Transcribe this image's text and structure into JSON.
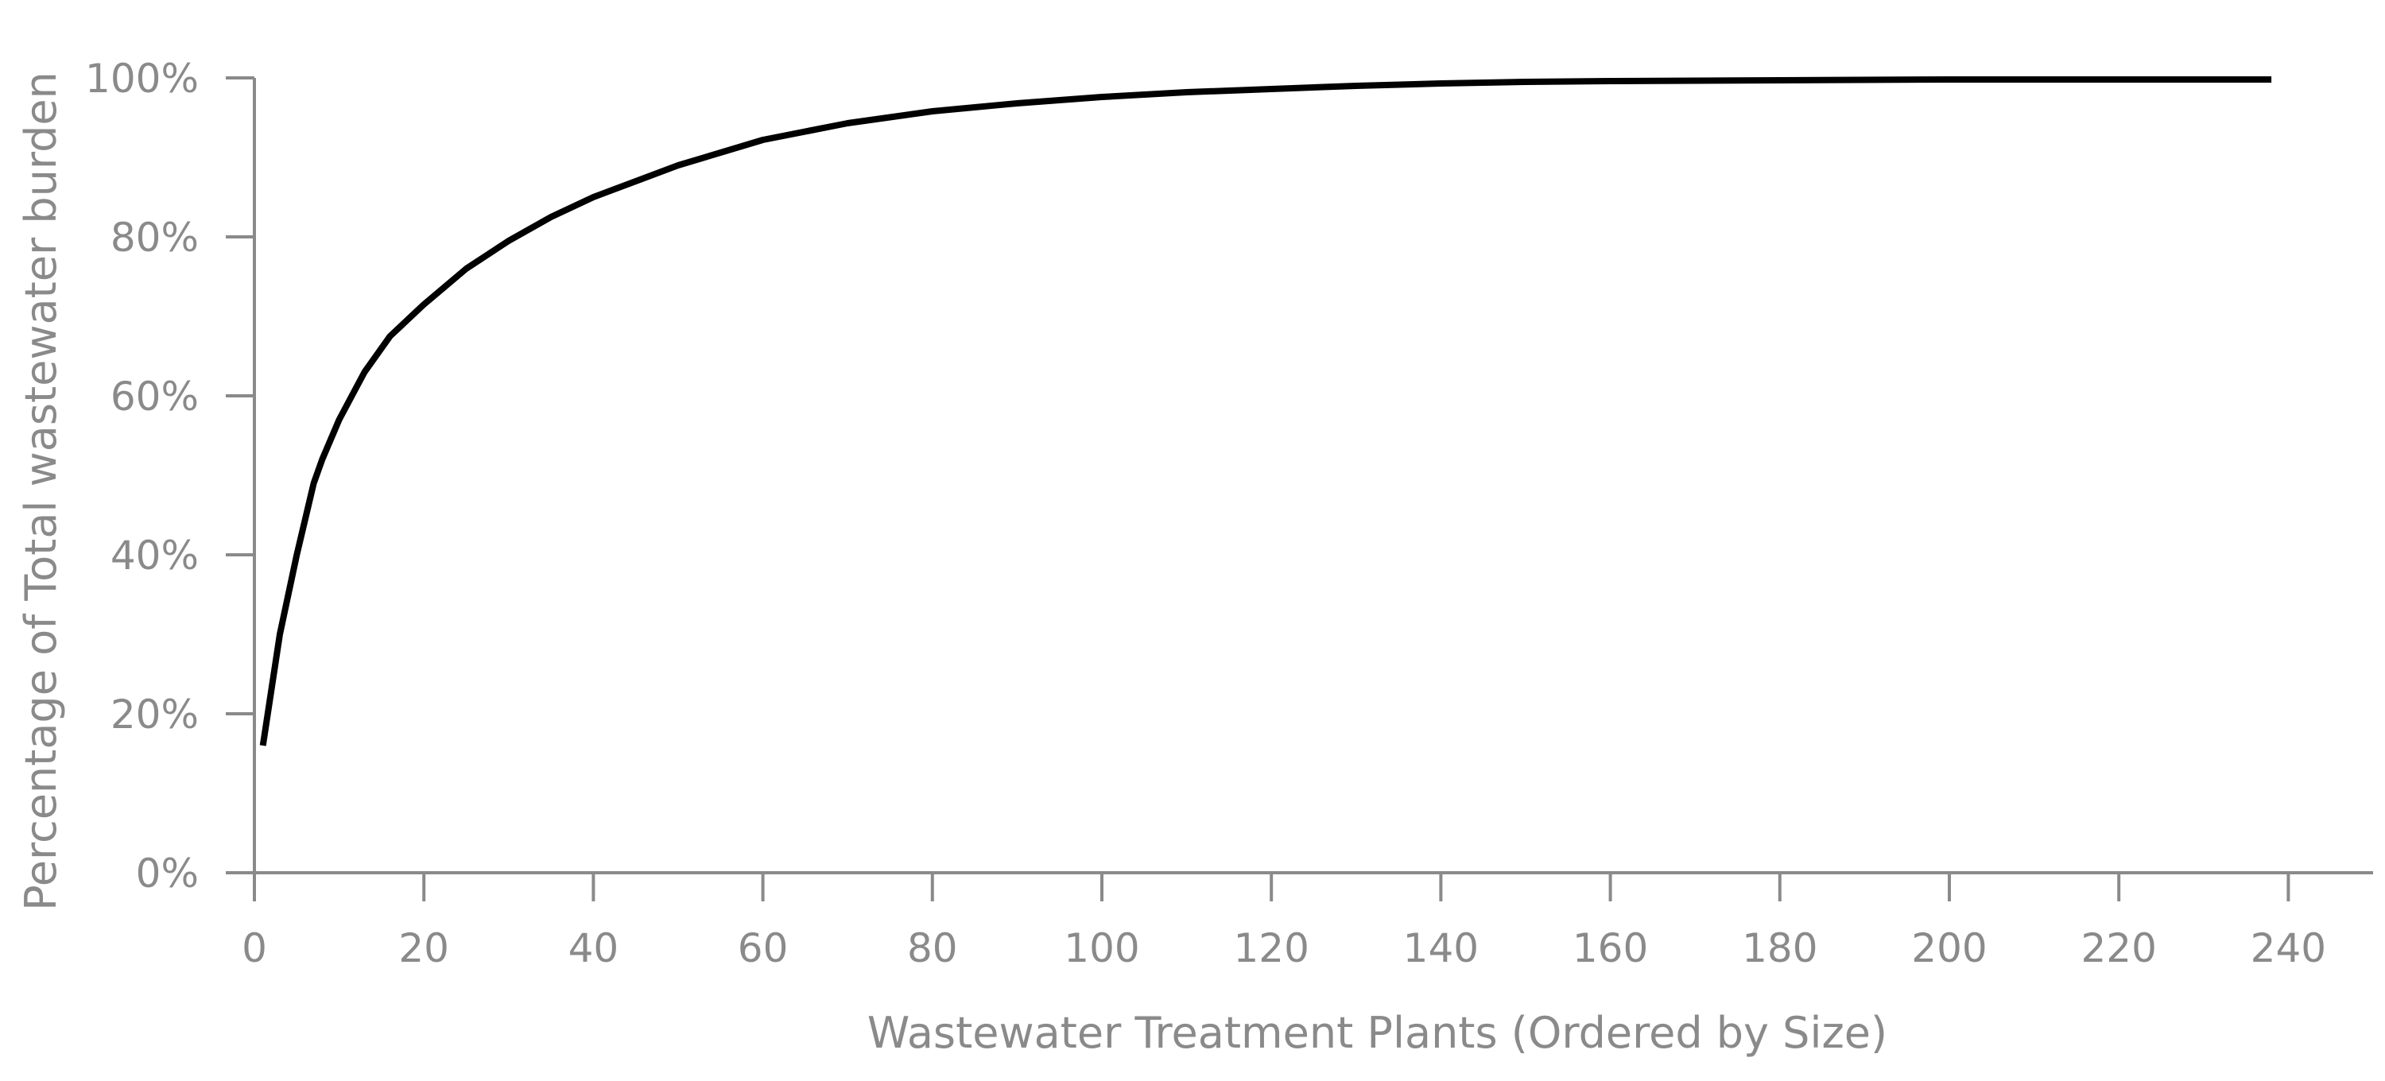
{
  "chart_data": {
    "type": "line",
    "title": "",
    "xlabel": "Wastewater Treatment Plants (Ordered by Size)",
    "ylabel": "Percentage of Total wastewater burden",
    "xlim": [
      0,
      250
    ],
    "ylim": [
      0,
      100
    ],
    "x_ticks": [
      0,
      20,
      40,
      60,
      80,
      100,
      120,
      140,
      160,
      180,
      200,
      220,
      240
    ],
    "y_ticks": [
      0,
      20,
      40,
      60,
      80,
      100
    ],
    "y_tick_labels": [
      "0%",
      "20%",
      "40%",
      "60%",
      "80%",
      "100%"
    ],
    "grid": false,
    "series_color": "#000000",
    "axis_color": "#8a8a8a",
    "series": [
      {
        "x": [
          1,
          3,
          5,
          7,
          8,
          10,
          12,
          13,
          16,
          20,
          25,
          30,
          35,
          40,
          45,
          50,
          60,
          70,
          80,
          90,
          100,
          110,
          120,
          130,
          140,
          150,
          160,
          180,
          200,
          220,
          238
        ],
        "y": [
          16,
          30,
          40,
          49,
          52,
          57,
          61,
          63,
          67.5,
          71.5,
          76,
          79.5,
          82.5,
          85,
          87,
          89,
          92.2,
          94.3,
          95.8,
          96.8,
          97.6,
          98.2,
          98.6,
          99,
          99.3,
          99.5,
          99.6,
          99.7,
          99.8,
          99.8,
          99.8
        ]
      }
    ]
  }
}
